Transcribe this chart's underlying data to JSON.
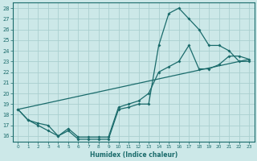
{
  "xlabel": "Humidex (Indice chaleur)",
  "xlim": [
    -0.5,
    23.5
  ],
  "ylim": [
    15.5,
    28.5
  ],
  "xticks": [
    0,
    1,
    2,
    3,
    4,
    5,
    6,
    7,
    8,
    9,
    10,
    11,
    12,
    13,
    14,
    15,
    16,
    17,
    18,
    19,
    20,
    21,
    22,
    23
  ],
  "yticks": [
    16,
    17,
    18,
    19,
    20,
    21,
    22,
    23,
    24,
    25,
    26,
    27,
    28
  ],
  "bg_color": "#cce8e8",
  "grid_color": "#aacfcf",
  "line_color": "#1a6b6b",
  "line1_x": [
    0,
    1,
    2,
    3,
    4,
    5,
    6,
    7,
    8,
    9,
    10,
    11,
    12,
    13,
    14,
    15,
    16,
    17,
    18,
    19,
    20,
    21,
    22,
    23
  ],
  "line1_y": [
    18.5,
    17.5,
    17.0,
    16.5,
    16.0,
    16.5,
    15.7,
    15.7,
    15.7,
    15.7,
    18.5,
    18.7,
    19.0,
    19.0,
    24.5,
    27.5,
    28.0,
    27.0,
    26.0,
    24.5,
    24.5,
    24.0,
    23.0,
    23.0
  ],
  "line2_x": [
    0,
    1,
    2,
    3,
    4,
    5,
    6,
    7,
    8,
    9,
    10,
    11,
    12,
    13,
    14,
    15,
    16,
    17,
    18,
    19,
    20,
    21,
    22,
    23
  ],
  "line2_y": [
    18.5,
    17.5,
    17.2,
    17.0,
    16.0,
    16.7,
    15.9,
    15.9,
    15.9,
    15.9,
    18.7,
    19.0,
    19.3,
    20.0,
    22.0,
    22.5,
    23.0,
    24.5,
    22.3,
    22.3,
    22.7,
    23.5,
    23.5,
    23.2
  ],
  "line3_x": [
    0,
    23
  ],
  "line3_y": [
    18.5,
    23.2
  ]
}
